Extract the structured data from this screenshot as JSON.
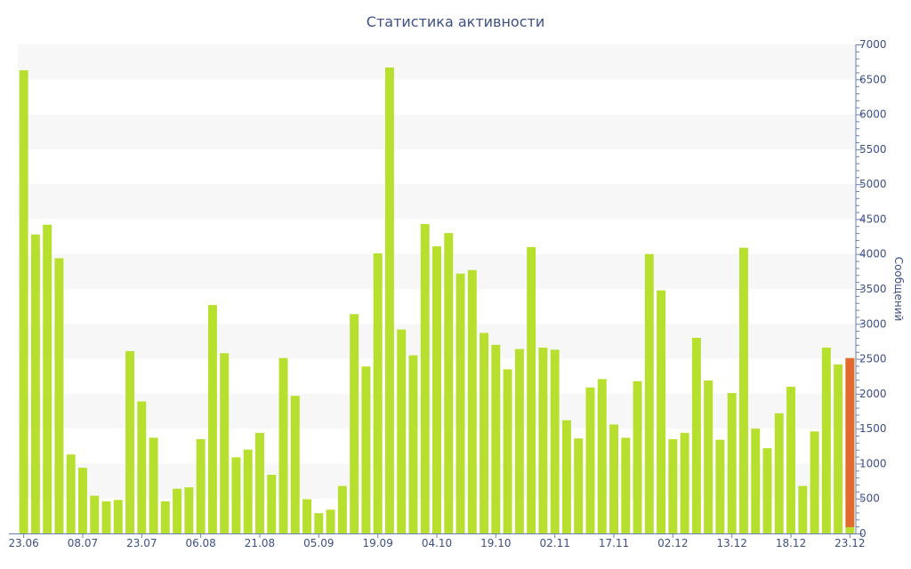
{
  "chart_data": {
    "type": "bar",
    "title": "Статистика активности",
    "ylabel": "Сообщений",
    "ylim": [
      0,
      7000
    ],
    "yticks": [
      0,
      500,
      1000,
      1500,
      2000,
      2500,
      3000,
      3500,
      4000,
      4500,
      5000,
      5500,
      6000,
      6500,
      7000
    ],
    "xtick_labels": [
      "23.06",
      "08.07",
      "23.07",
      "06.08",
      "21.08",
      "05.09",
      "19.09",
      "04.10",
      "19.10",
      "02.11",
      "17.11",
      "02.12",
      "13.12",
      "18.12",
      "23.12"
    ],
    "xtick_bar_index": [
      0,
      5,
      10,
      15,
      20,
      25,
      30,
      35,
      40,
      45,
      50,
      55,
      60,
      65,
      70
    ],
    "grid": true,
    "y_axis_side": "right",
    "colors": {
      "bar": "#b7e02e",
      "highlight": "#e36a2e",
      "grid_band": "#f7f7f7",
      "axis": "#6a7fb5",
      "text": "#3d4f85"
    },
    "values": [
      6630,
      4280,
      4420,
      3940,
      1130,
      940,
      540,
      460,
      480,
      2610,
      1890,
      1370,
      460,
      640,
      660,
      1350,
      3270,
      2580,
      1090,
      1200,
      1440,
      840,
      2510,
      1970,
      490,
      290,
      340,
      680,
      3140,
      2390,
      4010,
      6670,
      2920,
      2550,
      4430,
      4110,
      4300,
      3720,
      3770,
      2870,
      2700,
      2350,
      2640,
      4100,
      2660,
      2630,
      1620,
      1360,
      2090,
      2210,
      1560,
      1370,
      2180,
      4000,
      3480,
      1350,
      1440,
      2800,
      2190,
      1340,
      2010,
      4090,
      1500,
      1220,
      1720,
      2100,
      680,
      1460,
      2660,
      2420,
      2510
    ],
    "highlight_index": 70,
    "highlight_base": 90
  }
}
